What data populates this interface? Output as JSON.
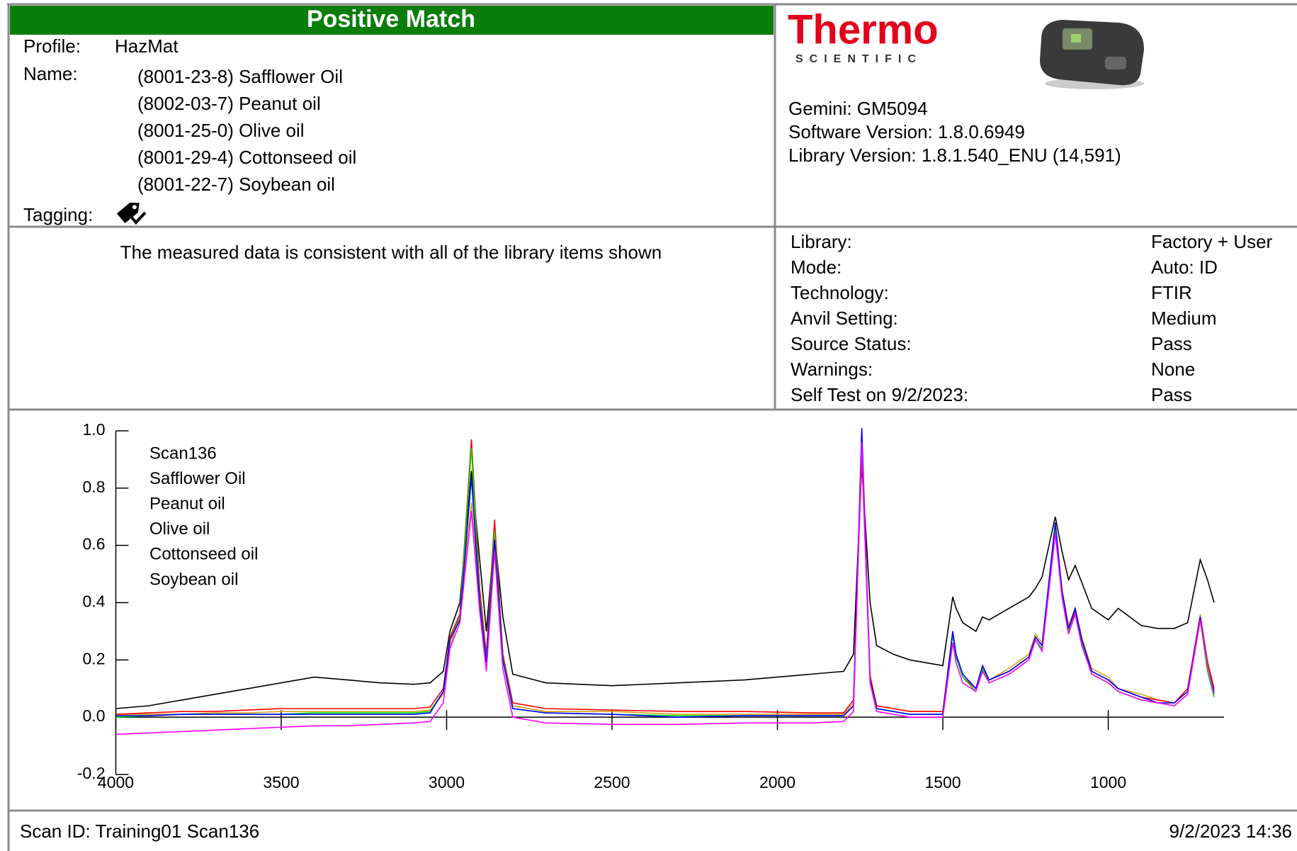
{
  "header": {
    "status": "Positive Match",
    "profile_label": "Profile:",
    "profile": "HazMat",
    "name_label": "Name:",
    "names": [
      "(8001-23-8) Safflower Oil",
      "(8002-03-7) Peanut oil",
      "(8001-25-0) Olive oil",
      "(8001-29-4) Cottonseed oil",
      "(8001-22-7) Soybean oil"
    ],
    "tagging_label": "Tagging:"
  },
  "logo": {
    "brand": "Thermo",
    "sub": "SCIENTIFIC"
  },
  "device": {
    "lines": [
      "Gemini: GM5094",
      "Software Version: 1.8.0.6949",
      "Library Version: 1.8.1.540_ENU (14,591)"
    ]
  },
  "message": "The measured data is consistent with all of the library items shown",
  "settings": [
    [
      "Library:",
      "Factory + User"
    ],
    [
      "Mode:",
      "Auto: ID"
    ],
    [
      "Technology:",
      "FTIR"
    ],
    [
      "Anvil Setting:",
      "Medium"
    ],
    [
      "Source Status:",
      "Pass"
    ],
    [
      "Warnings:",
      "None"
    ],
    [
      "Self Test on 9/2/2023:",
      "Pass"
    ]
  ],
  "chart_data": {
    "type": "line",
    "x": [
      4000,
      3900,
      3800,
      3700,
      3600,
      3500,
      3400,
      3300,
      3200,
      3100,
      3050,
      3010,
      2990,
      2960,
      2925,
      2900,
      2880,
      2855,
      2830,
      2800,
      2700,
      2500,
      2300,
      2100,
      1900,
      1800,
      1770,
      1745,
      1720,
      1700,
      1650,
      1600,
      1500,
      1470,
      1460,
      1440,
      1400,
      1380,
      1360,
      1300,
      1240,
      1220,
      1200,
      1160,
      1140,
      1120,
      1100,
      1080,
      1050,
      1000,
      970,
      900,
      850,
      800,
      760,
      722,
      700,
      680
    ],
    "xlim": [
      4000,
      650
    ],
    "xticks": [
      4000,
      3500,
      3000,
      2500,
      2000,
      1500,
      1000
    ],
    "ylim": [
      -0.2,
      1.0
    ],
    "yticks": [
      {
        "value": 1.0,
        "label": "1.0"
      },
      0.8,
      0.6,
      0.4,
      0.2,
      {
        "value": 0,
        "label": "0.0"
      },
      -0.2
    ],
    "series": [
      {
        "name": "Scan136",
        "color": "#000000",
        "values": [
          0.03,
          0.04,
          0.06,
          0.08,
          0.1,
          0.12,
          0.14,
          0.13,
          0.12,
          0.115,
          0.12,
          0.16,
          0.3,
          0.4,
          0.86,
          0.55,
          0.3,
          0.64,
          0.35,
          0.15,
          0.12,
          0.11,
          0.12,
          0.13,
          0.15,
          0.16,
          0.22,
          0.88,
          0.4,
          0.25,
          0.22,
          0.2,
          0.18,
          0.42,
          0.38,
          0.33,
          0.3,
          0.35,
          0.34,
          0.38,
          0.42,
          0.45,
          0.49,
          0.7,
          0.58,
          0.48,
          0.53,
          0.47,
          0.38,
          0.34,
          0.38,
          0.32,
          0.31,
          0.31,
          0.33,
          0.55,
          0.48,
          0.4
        ]
      },
      {
        "name": "Safflower Oil",
        "color": "#d4a017",
        "values": [
          0.01,
          0.01,
          0.01,
          0.015,
          0.015,
          0.02,
          0.02,
          0.02,
          0.02,
          0.02,
          0.025,
          0.08,
          0.25,
          0.35,
          0.75,
          0.4,
          0.2,
          0.6,
          0.2,
          0.04,
          0.02,
          0.02,
          0.01,
          0.01,
          0.01,
          0.01,
          0.05,
          0.95,
          0.15,
          0.04,
          0.03,
          0.02,
          0.02,
          0.3,
          0.22,
          0.15,
          0.1,
          0.18,
          0.13,
          0.17,
          0.22,
          0.29,
          0.26,
          0.66,
          0.45,
          0.32,
          0.38,
          0.28,
          0.17,
          0.14,
          0.1,
          0.08,
          0.06,
          0.05,
          0.1,
          0.36,
          0.2,
          0.1
        ]
      },
      {
        "name": "Peanut oil",
        "color": "#ff0000",
        "values": [
          0.01,
          0.015,
          0.02,
          0.02,
          0.025,
          0.03,
          0.03,
          0.03,
          0.03,
          0.03,
          0.035,
          0.1,
          0.28,
          0.36,
          0.97,
          0.45,
          0.22,
          0.69,
          0.22,
          0.05,
          0.03,
          0.025,
          0.02,
          0.02,
          0.015,
          0.015,
          0.06,
          0.92,
          0.14,
          0.04,
          0.03,
          0.02,
          0.02,
          0.29,
          0.21,
          0.14,
          0.1,
          0.17,
          0.13,
          0.16,
          0.21,
          0.28,
          0.25,
          0.65,
          0.44,
          0.31,
          0.37,
          0.27,
          0.16,
          0.13,
          0.1,
          0.07,
          0.06,
          0.05,
          0.1,
          0.35,
          0.19,
          0.1
        ]
      },
      {
        "name": "Olive oil",
        "color": "#00dd00",
        "values": [
          0.0,
          0.005,
          0.01,
          0.01,
          0.01,
          0.01,
          0.015,
          0.015,
          0.015,
          0.015,
          0.02,
          0.09,
          0.27,
          0.35,
          0.94,
          0.42,
          0.2,
          0.65,
          0.21,
          0.03,
          0.015,
          0.01,
          0.005,
          0.005,
          0.005,
          0.005,
          0.04,
          0.96,
          0.13,
          0.03,
          0.02,
          0.01,
          0.01,
          0.29,
          0.21,
          0.14,
          0.09,
          0.17,
          0.12,
          0.15,
          0.2,
          0.27,
          0.24,
          0.66,
          0.43,
          0.3,
          0.36,
          0.26,
          0.15,
          0.12,
          0.09,
          0.06,
          0.05,
          0.04,
          0.08,
          0.34,
          0.16,
          0.07
        ]
      },
      {
        "name": "Cottonseed oil",
        "color": "#0000ff",
        "values": [
          0.005,
          0.005,
          0.01,
          0.01,
          0.01,
          0.01,
          0.01,
          0.01,
          0.01,
          0.01,
          0.015,
          0.09,
          0.27,
          0.34,
          0.84,
          0.4,
          0.19,
          0.62,
          0.2,
          0.03,
          0.015,
          0.01,
          0.0,
          0.005,
          0.005,
          0.005,
          0.04,
          1.01,
          0.13,
          0.03,
          0.02,
          0.01,
          0.01,
          0.3,
          0.22,
          0.15,
          0.1,
          0.18,
          0.13,
          0.16,
          0.21,
          0.28,
          0.25,
          0.68,
          0.44,
          0.31,
          0.38,
          0.27,
          0.16,
          0.13,
          0.1,
          0.07,
          0.05,
          0.05,
          0.09,
          0.35,
          0.18,
          0.09
        ]
      },
      {
        "name": "Soybean oil",
        "color": "#ff00ff",
        "values": [
          -0.06,
          -0.055,
          -0.05,
          -0.045,
          -0.04,
          -0.035,
          -0.03,
          -0.03,
          -0.025,
          -0.02,
          -0.015,
          0.05,
          0.24,
          0.33,
          0.72,
          0.37,
          0.16,
          0.58,
          0.17,
          0.0,
          -0.02,
          -0.025,
          -0.025,
          -0.02,
          -0.02,
          -0.015,
          0.02,
          0.96,
          0.12,
          0.02,
          0.01,
          0.0,
          0.0,
          0.26,
          0.19,
          0.12,
          0.09,
          0.16,
          0.12,
          0.15,
          0.2,
          0.27,
          0.23,
          0.64,
          0.42,
          0.29,
          0.36,
          0.25,
          0.15,
          0.12,
          0.09,
          0.06,
          0.05,
          0.04,
          0.08,
          0.34,
          0.18,
          0.08
        ]
      }
    ]
  },
  "footer": {
    "scan_id": "Scan ID: Training01 Scan136",
    "datetime": "9/2/2023 14:36"
  }
}
